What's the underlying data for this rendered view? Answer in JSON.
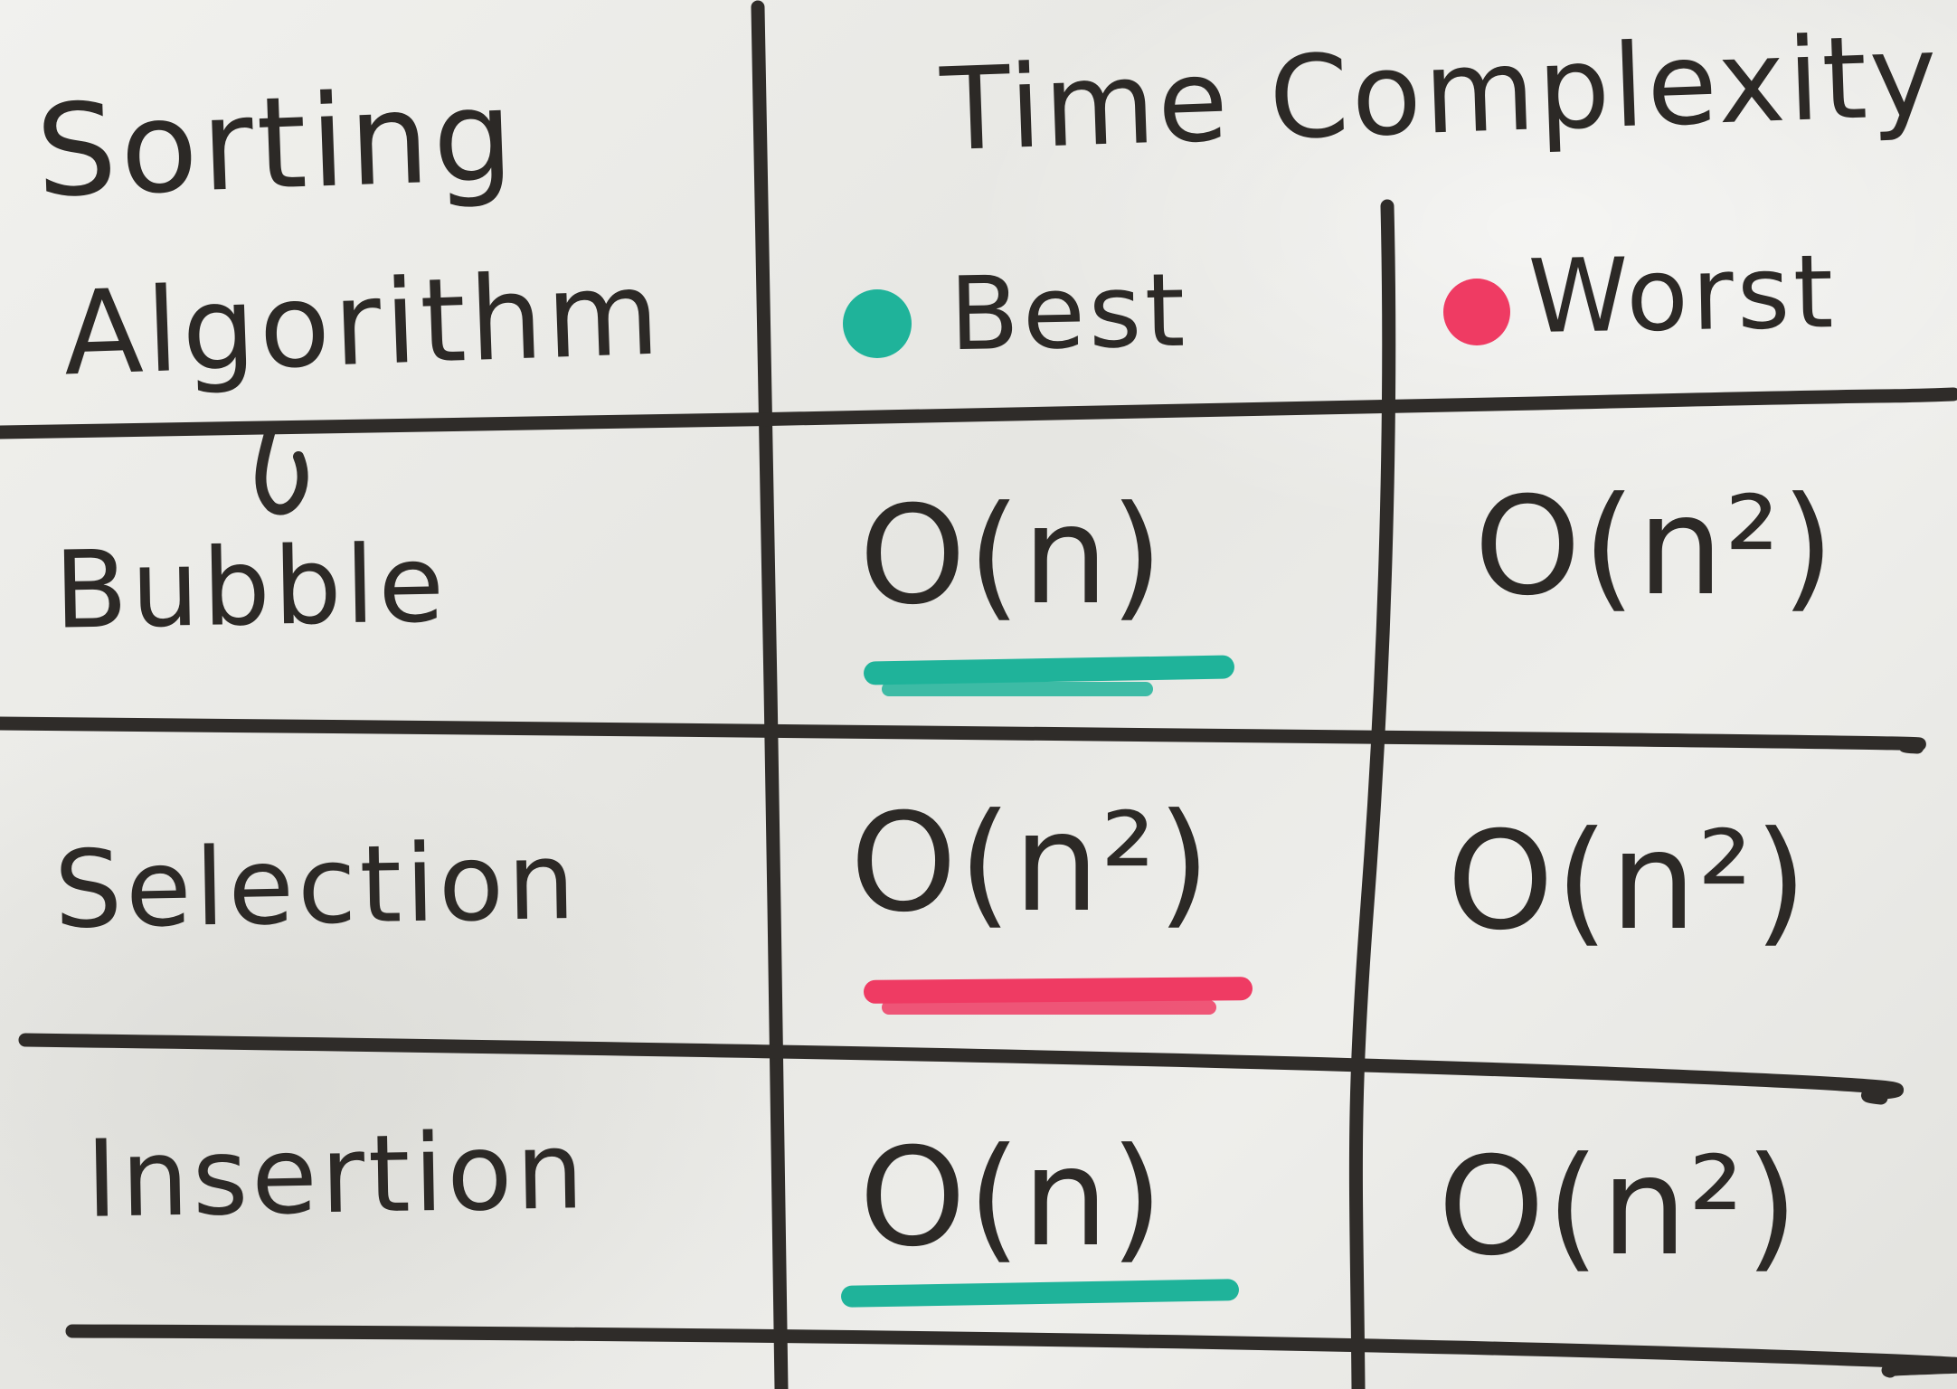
{
  "whiteboard": {
    "header": {
      "left_line1": "Sorting",
      "left_line2": "Algorithm",
      "right_title": "Time Complexity",
      "best_label": "Best",
      "worst_label": "Worst"
    },
    "legend_colors": {
      "best": "#1fb39a",
      "worst": "#ef3b63"
    },
    "marker_color": "#2c2926",
    "rows": [
      {
        "algorithm": "Bubble",
        "best": "O(n)",
        "worst": "O(n²)",
        "best_highlight": "best"
      },
      {
        "algorithm": "Selection",
        "best": "O(n²)",
        "worst": "O(n²)",
        "best_highlight": "worst"
      },
      {
        "algorithm": "Insertion",
        "best": "O(n)",
        "worst": "O(n²)",
        "best_highlight": "best"
      }
    ]
  }
}
